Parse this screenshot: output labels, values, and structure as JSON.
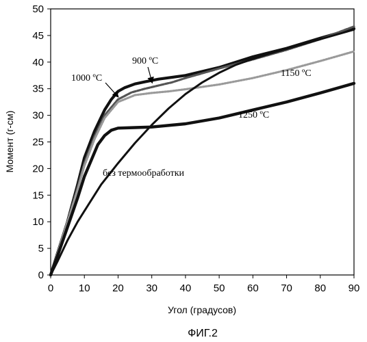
{
  "chart_data": {
    "type": "line",
    "xlabel": "Угол (градусов)",
    "ylabel": "Момент (г-см)",
    "xlim": [
      0,
      90
    ],
    "ylim": [
      0,
      50
    ],
    "xticks": [
      "0",
      "10",
      "20",
      "30",
      "40",
      "50",
      "60",
      "70",
      "80",
      "90"
    ],
    "yticks": [
      "0",
      "5",
      "10",
      "15",
      "20",
      "25",
      "30",
      "35",
      "40",
      "45",
      "50"
    ],
    "grid": false,
    "caption": "ФИГ.2",
    "series": [
      {
        "name": "1000 ºC",
        "color": "#111111",
        "x": [
          0,
          2,
          5,
          8,
          10,
          13,
          16,
          18,
          20,
          22,
          25,
          28,
          32,
          40,
          50,
          60,
          70,
          80,
          90
        ],
        "y": [
          0,
          4,
          10,
          17,
          22,
          27,
          31,
          33,
          34.5,
          35.2,
          35.9,
          36.3,
          36.8,
          37.5,
          39,
          41,
          42.6,
          44.5,
          46.3
        ]
      },
      {
        "name": "900 ºC",
        "color": "#555555",
        "x": [
          0,
          2,
          5,
          8,
          10,
          13,
          16,
          20,
          24,
          28,
          32,
          36,
          40,
          50,
          60,
          70,
          80,
          90
        ],
        "y": [
          0,
          4,
          10,
          16.5,
          21,
          26,
          30,
          33,
          34.3,
          35,
          35.6,
          36.2,
          37,
          38.8,
          40.5,
          42.3,
          44.3,
          46.7
        ]
      },
      {
        "name": "1150 ºC",
        "color": "#9a9a9a",
        "x": [
          0,
          2,
          5,
          8,
          10,
          13,
          16,
          20,
          25,
          30,
          35,
          40,
          50,
          60,
          70,
          80,
          90
        ],
        "y": [
          0,
          4,
          10,
          16,
          20.5,
          25.5,
          29.5,
          32.5,
          33.8,
          34.2,
          34.5,
          34.9,
          35.8,
          37,
          38.5,
          40.2,
          42
        ]
      },
      {
        "name": "1250 ºC",
        "color": "#111111",
        "x": [
          0,
          2,
          5,
          8,
          10,
          12,
          14,
          16,
          18,
          20,
          25,
          30,
          40,
          50,
          60,
          70,
          80,
          90
        ],
        "y": [
          0,
          3.5,
          9,
          14.5,
          18.5,
          21.5,
          24.5,
          26.2,
          27.2,
          27.6,
          27.7,
          27.8,
          28.4,
          29.5,
          31,
          32.5,
          34.2,
          36
        ]
      },
      {
        "name": "без термообработки",
        "color": "#111111",
        "x": [
          0,
          2,
          5,
          8,
          10,
          15,
          20,
          25,
          30,
          35,
          40,
          45,
          50,
          55,
          60,
          65,
          70,
          80,
          90
        ],
        "y": [
          0,
          2.5,
          6.5,
          10,
          12,
          17,
          21,
          24.8,
          28.2,
          31.3,
          34,
          36.2,
          38,
          39.5,
          40.6,
          41.6,
          42.5,
          44.3,
          46.1
        ]
      }
    ],
    "annotations": [
      {
        "text": "1000 ºC",
        "series": 0,
        "arrow": true
      },
      {
        "text": "900 ºC",
        "series": 1,
        "arrow": true
      },
      {
        "text": "1150 ºC",
        "series": 2,
        "arrow": false
      },
      {
        "text": "1250 ºC",
        "series": 3,
        "arrow": false
      },
      {
        "text": "без термообработки",
        "series": 4,
        "arrow": false
      }
    ]
  }
}
